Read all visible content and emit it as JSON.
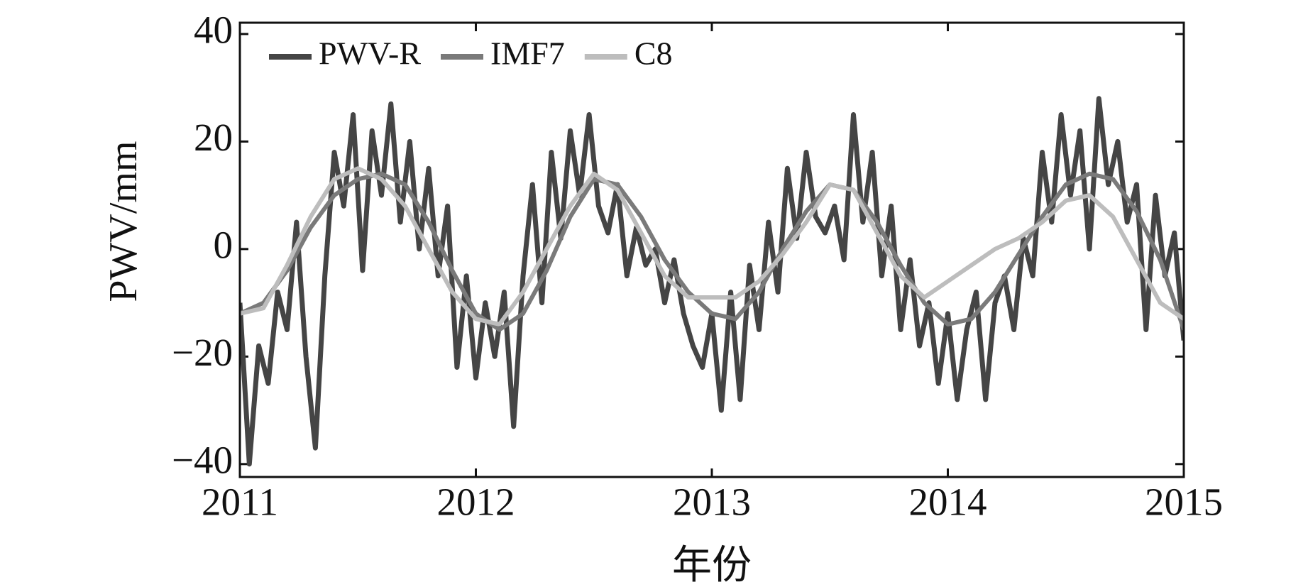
{
  "chart_data": {
    "type": "line",
    "x_label": "年份",
    "y_label": "PWV/mm",
    "xlim": [
      2011,
      2015
    ],
    "ylim": [
      -42.4,
      42.1
    ],
    "xticks": [
      2011,
      2012,
      2013,
      2014,
      2015
    ],
    "yticks": [
      {
        "value": -40,
        "label": "−40"
      },
      {
        "value": -20,
        "label": "−20"
      },
      0,
      20,
      40
    ],
    "grid": false,
    "legend": "upper left",
    "series": [
      {
        "name": "PWV-R",
        "color": "#454545",
        "x": [
          2011.0,
          2011.04,
          2011.08,
          2011.12,
          2011.16,
          2011.2,
          2011.24,
          2011.28,
          2011.32,
          2011.36,
          2011.4,
          2011.44,
          2011.48,
          2011.52,
          2011.56,
          2011.6,
          2011.64,
          2011.68,
          2011.72,
          2011.76,
          2011.8,
          2011.84,
          2011.88,
          2011.92,
          2011.96,
          2012.0,
          2012.04,
          2012.08,
          2012.12,
          2012.16,
          2012.2,
          2012.24,
          2012.28,
          2012.32,
          2012.36,
          2012.4,
          2012.44,
          2012.48,
          2012.52,
          2012.56,
          2012.6,
          2012.64,
          2012.68,
          2012.72,
          2012.76,
          2012.8,
          2012.84,
          2012.88,
          2012.92,
          2012.96,
          2013.0,
          2013.04,
          2013.08,
          2013.12,
          2013.16,
          2013.2,
          2013.24,
          2013.28,
          2013.32,
          2013.36,
          2013.4,
          2013.44,
          2013.48,
          2013.52,
          2013.56,
          2013.6,
          2013.64,
          2013.68,
          2013.72,
          2013.76,
          2013.8,
          2013.84,
          2013.88,
          2013.92,
          2013.96,
          2014.0,
          2014.04,
          2014.08,
          2014.12,
          2014.16,
          2014.2,
          2014.24,
          2014.28,
          2014.32,
          2014.36,
          2014.4,
          2014.44,
          2014.48,
          2014.52,
          2014.56,
          2014.6,
          2014.64,
          2014.68,
          2014.72,
          2014.76,
          2014.8,
          2014.84,
          2014.88,
          2014.92,
          2014.96,
          2015.0
        ],
        "values": [
          -10,
          -40,
          -18,
          -25,
          -8,
          -15,
          5,
          -20,
          -37,
          -5,
          18,
          8,
          25,
          -4,
          22,
          10,
          27,
          5,
          20,
          0,
          15,
          -5,
          8,
          -22,
          -5,
          -24,
          -10,
          -20,
          -8,
          -33,
          -5,
          12,
          -10,
          18,
          2,
          22,
          10,
          25,
          8,
          3,
          12,
          -5,
          4,
          -3,
          0,
          -10,
          -2,
          -12,
          -18,
          -22,
          -12,
          -30,
          -8,
          -28,
          -3,
          -15,
          5,
          -8,
          15,
          2,
          18,
          6,
          3,
          8,
          -2,
          25,
          5,
          18,
          -5,
          8,
          -15,
          -2,
          -18,
          -10,
          -25,
          -12,
          -28,
          -15,
          -8,
          -28,
          -10,
          -5,
          -15,
          2,
          -5,
          18,
          5,
          25,
          10,
          22,
          0,
          28,
          12,
          20,
          5,
          12,
          -15,
          10,
          -5,
          3,
          -17
        ]
      },
      {
        "name": "IMF7",
        "color": "#7a7a7a",
        "x": [
          2011.0,
          2011.1,
          2011.2,
          2011.3,
          2011.4,
          2011.5,
          2011.6,
          2011.7,
          2011.8,
          2011.9,
          2012.0,
          2012.1,
          2012.2,
          2012.3,
          2012.4,
          2012.5,
          2012.6,
          2012.7,
          2012.8,
          2012.9,
          2013.0,
          2013.1,
          2013.2,
          2013.3,
          2013.4,
          2013.5,
          2013.6,
          2013.7,
          2013.8,
          2013.9,
          2014.0,
          2014.1,
          2014.2,
          2014.3,
          2014.4,
          2014.5,
          2014.6,
          2014.7,
          2014.8,
          2014.9,
          2015.0
        ],
        "values": [
          -12,
          -10,
          -4,
          4,
          10,
          13,
          14,
          12,
          5,
          -4,
          -12,
          -15,
          -12,
          -4,
          6,
          13,
          12,
          6,
          -2,
          -8,
          -12,
          -13,
          -8,
          0,
          7,
          12,
          11,
          5,
          -3,
          -10,
          -14,
          -13,
          -8,
          -1,
          6,
          12,
          14,
          13,
          7,
          -2,
          -15
        ]
      },
      {
        "name": "C8",
        "color": "#bdbdbd",
        "x": [
          2011.0,
          2011.1,
          2011.2,
          2011.3,
          2011.4,
          2011.5,
          2011.6,
          2011.7,
          2011.8,
          2011.9,
          2012.0,
          2012.1,
          2012.2,
          2012.3,
          2012.4,
          2012.5,
          2012.6,
          2012.7,
          2012.8,
          2012.9,
          2013.0,
          2013.1,
          2013.2,
          2013.3,
          2013.4,
          2013.5,
          2013.6,
          2013.7,
          2013.8,
          2013.9,
          2014.0,
          2014.1,
          2014.2,
          2014.3,
          2014.4,
          2014.5,
          2014.6,
          2014.7,
          2014.8,
          2014.9,
          2015.0
        ],
        "values": [
          -12,
          -11,
          -3,
          6,
          13,
          15,
          13,
          8,
          0,
          -8,
          -13,
          -14,
          -8,
          0,
          8,
          14,
          11,
          3,
          -5,
          -9,
          -9,
          -9,
          -6,
          -1,
          5,
          12,
          11,
          3,
          -5,
          -9,
          -6,
          -3,
          0,
          2,
          5,
          9,
          10,
          6,
          -2,
          -10,
          -13
        ]
      }
    ]
  }
}
